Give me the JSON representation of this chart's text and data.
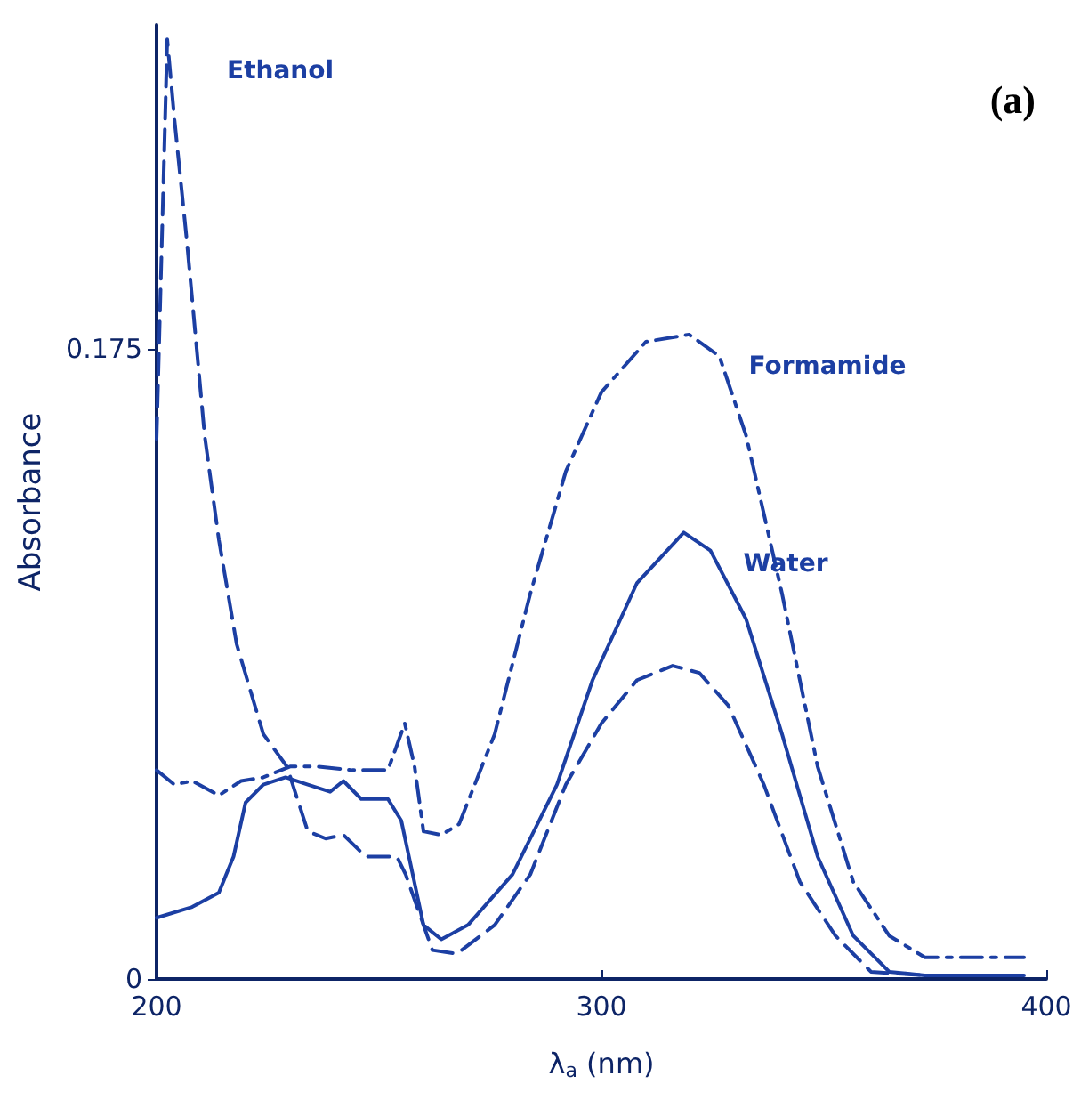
{
  "chart_data": {
    "type": "line",
    "xlabel": "λ$_{a}$ (nm)",
    "ylabel": "Absorbance",
    "annotations": [
      "(a)"
    ],
    "xlim": [
      200,
      400
    ],
    "xticks": [
      200,
      300,
      400
    ],
    "ylim": [
      0,
      0.265
    ],
    "yticks": [
      0,
      0.175
    ],
    "grid": false,
    "legend": false,
    "marker": "none",
    "series": [
      {
        "name": "Ethanol",
        "color": "#1c3fa3",
        "line_style": "dashed",
        "x": [
          200,
          202.4,
          204,
          206.8,
          210.8,
          214,
          218,
          224,
          229.3,
          234,
          238,
          242,
          247,
          254,
          256,
          262,
          267.5,
          276,
          284,
          292,
          300,
          308,
          316,
          322,
          328.5,
          336.5,
          344.6,
          352.6,
          360.6,
          372.7,
          395
        ],
        "values": [
          0.15,
          0.261,
          0.239,
          0.205,
          0.151,
          0.122,
          0.093,
          0.068,
          0.059,
          0.041,
          0.039,
          0.04,
          0.034,
          0.034,
          0.029,
          0.008,
          0.007,
          0.015,
          0.029,
          0.054,
          0.071,
          0.083,
          0.087,
          0.085,
          0.076,
          0.054,
          0.027,
          0.012,
          0.002,
          0.001,
          0.001
        ]
      },
      {
        "name": "Water",
        "color": "#1c3fa3",
        "line_style": "solid",
        "x": [
          200,
          208,
          214,
          217.3,
          220,
          224,
          229,
          234,
          239,
          242,
          246,
          252,
          255,
          260,
          264,
          270,
          280,
          290,
          298,
          308,
          318.5,
          324.5,
          332.5,
          340.6,
          348.6,
          356.6,
          364.7,
          372.7,
          395
        ],
        "values": [
          0.017,
          0.02,
          0.024,
          0.034,
          0.049,
          0.054,
          0.056,
          0.054,
          0.052,
          0.055,
          0.05,
          0.05,
          0.044,
          0.015,
          0.011,
          0.015,
          0.029,
          0.054,
          0.083,
          0.11,
          0.124,
          0.119,
          0.1,
          0.068,
          0.034,
          0.012,
          0.002,
          0.001,
          0.001
        ]
      },
      {
        "name": "Formamide",
        "color": "#1c3fa3",
        "line_style": "dashdot",
        "x": [
          200,
          204,
          208,
          214,
          219,
          224,
          230,
          236,
          244,
          252,
          255.8,
          258,
          260,
          264,
          268,
          276,
          284,
          292,
          300,
          310,
          319.7,
          326.5,
          332.5,
          340.6,
          348.6,
          356.6,
          364.7,
          372.7,
          395
        ],
        "values": [
          0.058,
          0.054,
          0.055,
          0.051,
          0.055,
          0.056,
          0.059,
          0.059,
          0.058,
          0.058,
          0.071,
          0.059,
          0.041,
          0.04,
          0.043,
          0.068,
          0.107,
          0.141,
          0.163,
          0.177,
          0.179,
          0.173,
          0.151,
          0.107,
          0.059,
          0.027,
          0.012,
          0.006,
          0.006
        ]
      }
    ]
  }
}
